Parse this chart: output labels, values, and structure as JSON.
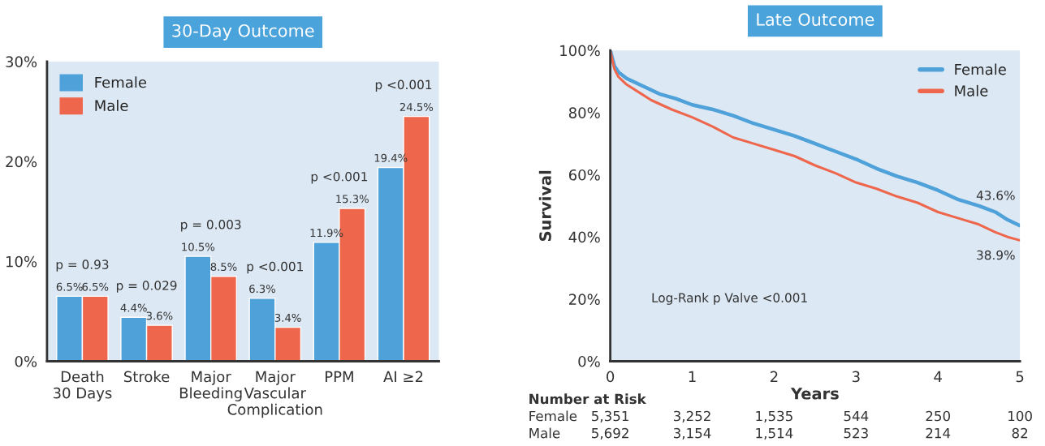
{
  "chart_data": [
    {
      "type": "bar",
      "title": "30-Day Outcome",
      "categories": [
        "Death\n30 Days",
        "Stroke",
        "Major\nBleeding",
        "Major\nVascular\nComplication",
        "PPM",
        "AI ≥2"
      ],
      "series": [
        {
          "name": "Female",
          "color": "#4ea1d9",
          "values": [
            6.5,
            4.4,
            10.5,
            6.3,
            11.9,
            19.4
          ],
          "value_labels": [
            "6.5%",
            "4.4%",
            "10.5%",
            "6.3%",
            "11.9%",
            "19.4%"
          ]
        },
        {
          "name": "Male",
          "color": "#ee674d",
          "values": [
            6.5,
            3.6,
            8.5,
            3.4,
            15.3,
            24.5
          ],
          "value_labels": [
            "6.5%",
            "3.6%",
            "8.5%",
            "3.4%",
            "15.3%",
            "24.5%"
          ]
        }
      ],
      "ylim": [
        0,
        30
      ],
      "yticks": [
        {
          "value": 0,
          "label": "0%"
        },
        {
          "value": 10,
          "label": "10%"
        },
        {
          "value": 20,
          "label": "20%"
        },
        {
          "value": 30,
          "label": "30%"
        }
      ],
      "annotations": [
        {
          "text": "p = 0.93",
          "x": "Death\n30 Days",
          "y": 6.5
        },
        {
          "text": "p = 0.029",
          "x": "Stroke",
          "y": 4.4
        },
        {
          "text": "p = 0.003",
          "x": "Major\nBleeding",
          "y": 10.5
        },
        {
          "text": "p <0.001",
          "x": "Major\nVascular\nComplication",
          "y": 6.3
        },
        {
          "text": "p <0.001",
          "x": "PPM",
          "y": 15.3
        },
        {
          "text": "p <0.001",
          "x": "AI ≥2",
          "y": 24.5
        }
      ],
      "grid": false,
      "legend": "top left"
    },
    {
      "type": "line",
      "title": "Late Outcome",
      "xlabel": "Years",
      "ylabel": "Survival",
      "series": [
        {
          "name": "Female",
          "color": "#4ea1d9",
          "x": [
            0,
            0.05,
            0.1,
            0.2,
            0.4,
            0.6,
            0.8,
            1.0,
            1.25,
            1.5,
            1.75,
            2.0,
            2.25,
            2.5,
            2.75,
            3.0,
            3.25,
            3.5,
            3.75,
            4.0,
            4.25,
            4.5,
            4.7,
            4.85,
            5.0
          ],
          "values": [
            100,
            95,
            93,
            91,
            88.5,
            86,
            84.5,
            82.5,
            81,
            79,
            76.5,
            74.5,
            72.5,
            70,
            67.5,
            65,
            62,
            59.5,
            57.5,
            55,
            52,
            50,
            48,
            45.5,
            43.6
          ]
        },
        {
          "name": "Male",
          "color": "#ee674d",
          "x": [
            0,
            0.05,
            0.1,
            0.2,
            0.35,
            0.5,
            0.75,
            1.0,
            1.25,
            1.5,
            1.75,
            2.0,
            2.25,
            2.5,
            2.75,
            3.0,
            3.25,
            3.5,
            3.75,
            4.0,
            4.25,
            4.5,
            4.7,
            4.85,
            5.0
          ],
          "values": [
            100,
            94,
            91.5,
            89,
            86.5,
            84,
            81,
            78.5,
            75.5,
            72,
            70,
            68,
            66,
            63,
            60.5,
            57.5,
            55.5,
            53,
            51,
            48,
            46,
            44,
            41.5,
            40,
            38.9
          ]
        }
      ],
      "xlim": [
        0,
        5
      ],
      "xticks": [
        0,
        1,
        2,
        3,
        4,
        5
      ],
      "ylim": [
        0,
        100
      ],
      "yticks": [
        {
          "value": 0,
          "label": "0%"
        },
        {
          "value": 20,
          "label": "20%"
        },
        {
          "value": 40,
          "label": "40%"
        },
        {
          "value": 60,
          "label": "60%"
        },
        {
          "value": 80,
          "label": "80%"
        },
        {
          "value": 100,
          "label": "100%"
        }
      ],
      "annotations": [
        "Log-Rank p Valve <0.001",
        {
          "text": "43.6%",
          "x": 5,
          "y": 43.6
        },
        {
          "text": "38.9%",
          "x": 5,
          "y": 38.9
        },
        "Number at Risk",
        "Female",
        "5,351",
        "3,252",
        "1,535",
        "544",
        "250",
        "100",
        "Male",
        "5,692",
        "3,154",
        "1,514",
        "523",
        "214",
        "82"
      ],
      "grid": false,
      "legend": "top right",
      "marker": "none",
      "line_style": "solid"
    }
  ]
}
